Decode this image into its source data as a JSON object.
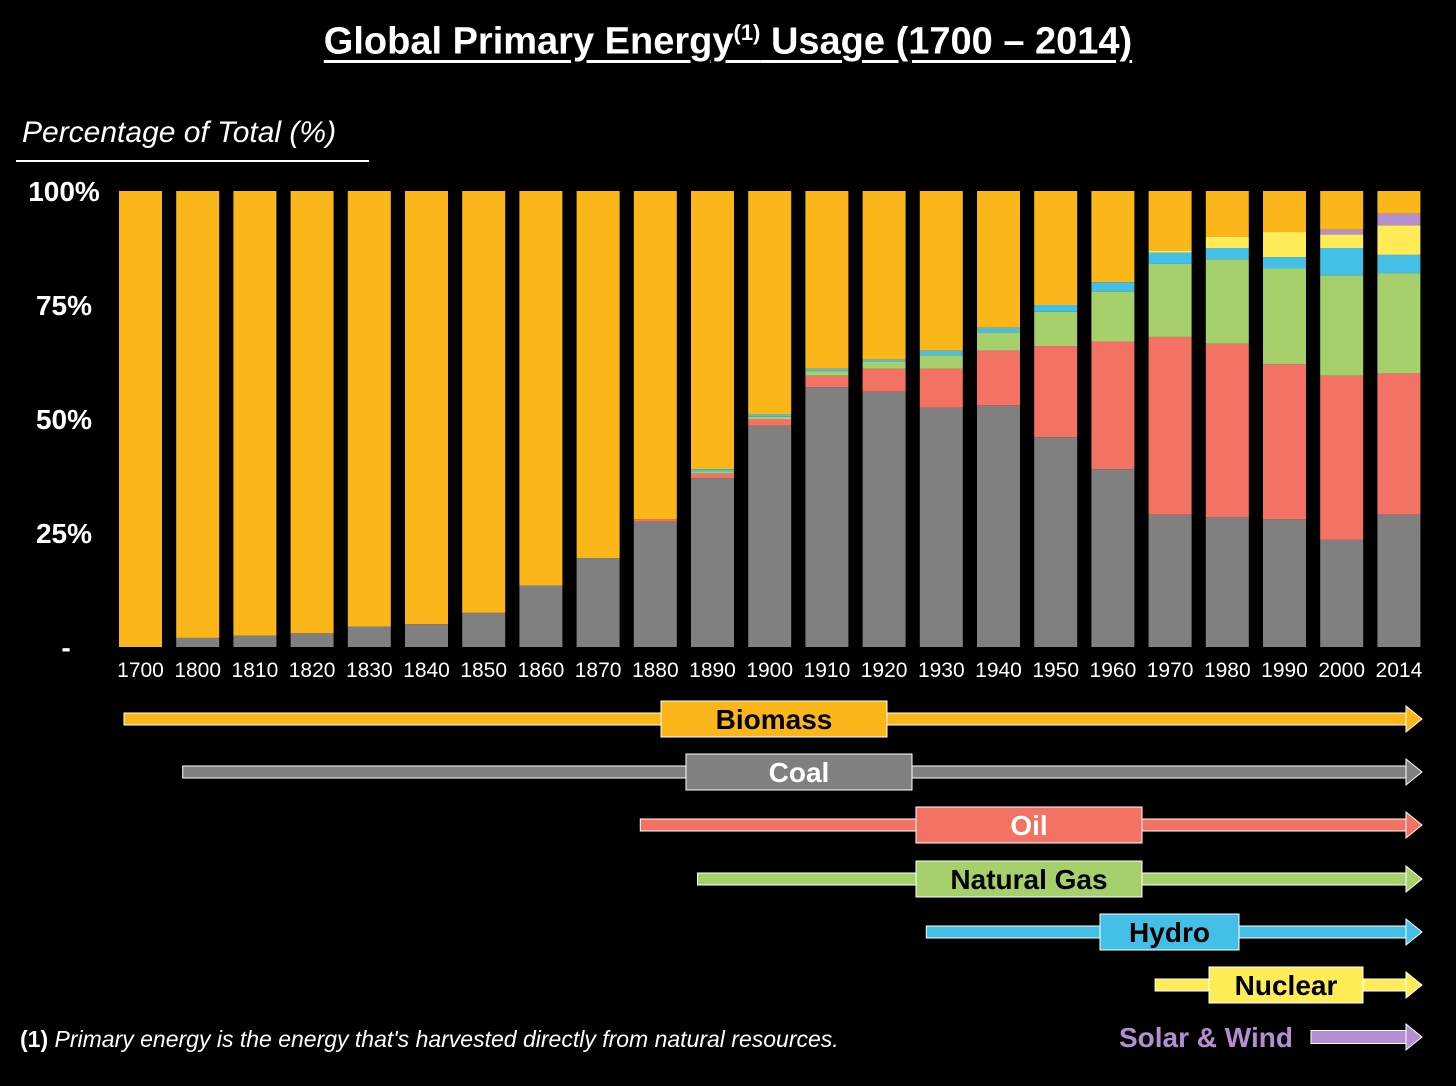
{
  "chart_data": {
    "type": "bar",
    "title": "Global Primary Energy",
    "title_sup": "(1)",
    "title_suffix": "Usage (1700 – 2014)",
    "ylabel": "Percentage of Total (%)",
    "ylim": [
      0,
      100
    ],
    "yticks": [
      "100%",
      "75%",
      "50%",
      "25%",
      "-"
    ],
    "ytick_values": [
      100,
      75,
      50,
      25,
      0
    ],
    "stacked": true,
    "grid": false,
    "legend": "timeline-arrows-below",
    "categories": [
      "1700",
      "1800",
      "1810",
      "1820",
      "1830",
      "1840",
      "1850",
      "1860",
      "1870",
      "1880",
      "1890",
      "1900",
      "1910",
      "1920",
      "1930",
      "1940",
      "1950",
      "1960",
      "1970",
      "1980",
      "1990",
      "2000",
      "2014"
    ],
    "series": [
      {
        "name": "Coal",
        "color": "#808080",
        "values": [
          0,
          2,
          2.5,
          3,
          4.5,
          5,
          7.5,
          13.5,
          19.5,
          27.5,
          37,
          48.5,
          57,
          56,
          52.5,
          53,
          46,
          39,
          29,
          28.5,
          28,
          23.5,
          29
        ]
      },
      {
        "name": "Oil",
        "color": "#f47264",
        "values": [
          0,
          0,
          0,
          0,
          0,
          0,
          0,
          0,
          0,
          0.5,
          1,
          1.5,
          2.5,
          5,
          8.5,
          12,
          20,
          28,
          39,
          38,
          34,
          36,
          31
        ]
      },
      {
        "name": "Natural Gas",
        "color": "#a6d06b",
        "values": [
          0,
          0,
          0,
          0,
          0,
          0,
          0,
          0,
          0,
          0,
          0.5,
          0.5,
          1,
          1.5,
          3,
          4,
          7.5,
          11,
          16,
          18.5,
          21,
          22,
          22
        ]
      },
      {
        "name": "Hydro",
        "color": "#44bfe6",
        "values": [
          0,
          0,
          0,
          0,
          0,
          0,
          0,
          0,
          0,
          0,
          0.5,
          0.5,
          0.5,
          0.5,
          1,
          1,
          1.5,
          2,
          2.5,
          2.5,
          2.5,
          6,
          4
        ]
      },
      {
        "name": "Nuclear",
        "color": "#ffec57",
        "values": [
          0,
          0,
          0,
          0,
          0,
          0,
          0,
          0,
          0,
          0,
          0,
          0,
          0,
          0,
          0,
          0,
          0,
          0,
          0.5,
          2.5,
          5.5,
          3,
          6.5
        ]
      },
      {
        "name": "Solar & Wind",
        "color": "#b48ed1",
        "values": [
          0,
          0,
          0,
          0,
          0,
          0,
          0,
          0,
          0,
          0,
          0,
          0,
          0,
          0,
          0,
          0,
          0,
          0,
          0,
          0,
          0,
          1,
          2.5
        ]
      },
      {
        "name": "Biomass",
        "color": "#fbb61a",
        "values": [
          100,
          98,
          97.5,
          97,
          95.5,
          95,
          92.5,
          86.5,
          80.5,
          72,
          61,
          49,
          39,
          37,
          35,
          30,
          25,
          20,
          13,
          10,
          9,
          8.5,
          5
        ]
      }
    ],
    "timeline": [
      {
        "name": "Biomass",
        "color": "#fbb61a",
        "text_color": "#000000",
        "start": "1700"
      },
      {
        "name": "Coal",
        "color": "#808080",
        "text_color": "#ffffff",
        "start": "1800"
      },
      {
        "name": "Oil",
        "color": "#f47264",
        "text_color": "#ffffff",
        "start": "1880"
      },
      {
        "name": "Natural Gas",
        "color": "#a6d06b",
        "text_color": "#000000",
        "start": "1890"
      },
      {
        "name": "Hydro",
        "color": "#44bfe6",
        "text_color": "#000000",
        "start": "1930"
      },
      {
        "name": "Nuclear",
        "color": "#ffec57",
        "text_color": "#000000",
        "start": "1970"
      },
      {
        "name": "Solar & Wind",
        "color": "#b48ed1",
        "text_color": "#b48ed1",
        "start": "2000"
      }
    ]
  },
  "footnote": {
    "marker": "(1)",
    "text": "Primary energy is the energy that's harvested directly from natural resources."
  }
}
